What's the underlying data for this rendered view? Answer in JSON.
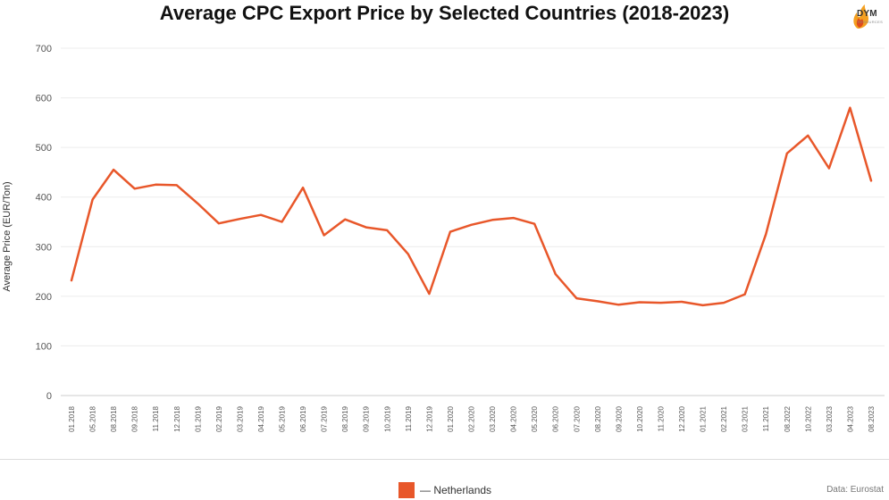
{
  "chart_data": {
    "type": "line",
    "title": "Average CPC Export Price by Selected Countries (2018-2023)",
    "ylabel": "Average Price (EUR/Ton)",
    "xlabel": "",
    "ylim": [
      0,
      700
    ],
    "yticks": [
      0,
      100,
      200,
      300,
      400,
      500,
      600,
      700
    ],
    "grid": true,
    "legend_position": "bottom",
    "categories": [
      "01.2018",
      "05.2018",
      "08.2018",
      "09.2018",
      "11.2018",
      "12.2018",
      "01.2019",
      "02.2019",
      "03.2019",
      "04.2019",
      "05.2019",
      "06.2019",
      "07.2019",
      "08.2019",
      "09.2019",
      "10.2019",
      "11.2019",
      "12.2019",
      "01.2020",
      "02.2020",
      "03.2020",
      "04.2020",
      "05.2020",
      "06.2020",
      "07.2020",
      "08.2020",
      "09.2020",
      "10.2020",
      "11.2020",
      "12.2020",
      "01.2021",
      "02.2021",
      "03.2021",
      "11.2021",
      "08.2022",
      "10.2022",
      "03.2023",
      "04.2023",
      "08.2023"
    ],
    "series": [
      {
        "name": "Netherlands",
        "color": "#e8572a",
        "values": [
          232,
          395,
          455,
          417,
          425,
          424,
          387,
          347,
          356,
          364,
          350,
          419,
          323,
          355,
          339,
          333,
          285,
          205,
          330,
          344,
          354,
          358,
          346,
          245,
          196,
          190,
          183,
          188,
          187,
          189,
          182,
          187,
          204,
          325,
          488,
          524,
          458,
          580,
          433
        ]
      }
    ]
  },
  "legend": {
    "label": "— Netherlands",
    "swatch_color": "#e8572a"
  },
  "logo": {
    "brand": "DYM",
    "tagline": "RESOURCES"
  },
  "source": "Data: Eurostat"
}
